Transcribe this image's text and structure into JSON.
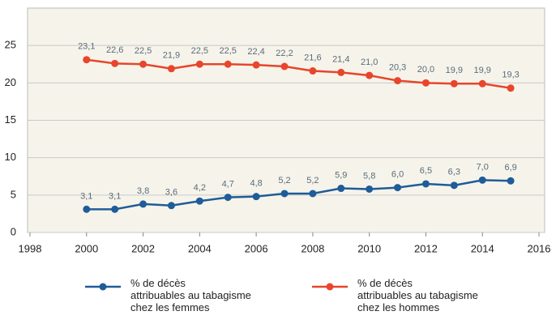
{
  "chart_data": {
    "type": "line",
    "x": [
      2000,
      2001,
      2002,
      2003,
      2004,
      2005,
      2006,
      2007,
      2008,
      2009,
      2010,
      2011,
      2012,
      2013,
      2014,
      2015
    ],
    "series": [
      {
        "name": "% de décès\nattribuables au tabagisme\nchez les femmes",
        "color": "#1f5c99",
        "values": [
          3.1,
          3.1,
          3.8,
          3.6,
          4.2,
          4.7,
          4.8,
          5.2,
          5.2,
          5.9,
          5.8,
          6.0,
          6.5,
          6.3,
          7.0,
          6.9
        ],
        "value_labels": [
          "3,1",
          "3,1",
          "3,8",
          "3,6",
          "4,2",
          "4,7",
          "4,8",
          "5,2",
          "5,2",
          "5,9",
          "5,8",
          "6,0",
          "6,5",
          "6,3",
          "7,0",
          "6,9"
        ]
      },
      {
        "name": "% de décès\nattribuables au tabagisme\nchez les hommes",
        "color": "#e8452c",
        "values": [
          23.1,
          22.6,
          22.5,
          21.9,
          22.5,
          22.5,
          22.4,
          22.2,
          21.6,
          21.4,
          21.0,
          20.3,
          20.0,
          19.9,
          19.9,
          19.3
        ],
        "value_labels": [
          "23,1",
          "22,6",
          "22,5",
          "21,9",
          "22,5",
          "22,5",
          "22,4",
          "22,2",
          "21,6",
          "21,4",
          "21,0",
          "20,3",
          "20,0",
          "19,9",
          "19,9",
          "19,3"
        ]
      }
    ],
    "xlim": [
      1998,
      2016
    ],
    "xticks": [
      1998,
      2000,
      2002,
      2004,
      2006,
      2008,
      2010,
      2012,
      2014,
      2016
    ],
    "ylim": [
      0,
      30
    ],
    "yticks": [
      0,
      5,
      10,
      15,
      20,
      25
    ],
    "grid": true
  }
}
